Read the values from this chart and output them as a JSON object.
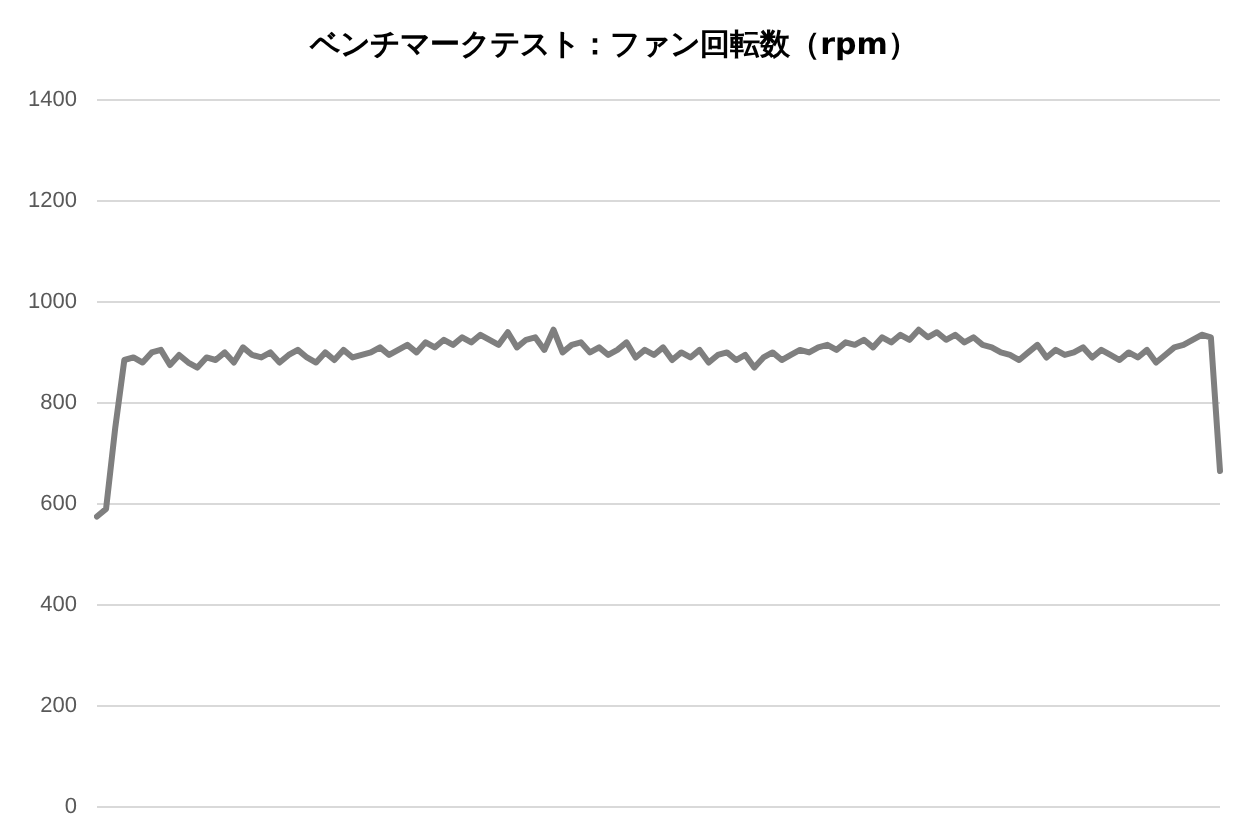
{
  "chart_data": {
    "type": "line",
    "title": "ベンチマークテスト：ファン回転数（rpm）",
    "categories": [
      null,
      null,
      null,
      null,
      null,
      null,
      null,
      null,
      null,
      null,
      null,
      null,
      null,
      null,
      null,
      null,
      null,
      null,
      null,
      null,
      null,
      null,
      null,
      null,
      null,
      null,
      null,
      null,
      null,
      null,
      null,
      null,
      null,
      null,
      null,
      null,
      null,
      null,
      null,
      null,
      null,
      null,
      null,
      null,
      null,
      null,
      null,
      null,
      null,
      null,
      null,
      null,
      null,
      null,
      null,
      null,
      null,
      null,
      null,
      null,
      null,
      null,
      null,
      null,
      null,
      null,
      null,
      null,
      null,
      null,
      null,
      null,
      null,
      null,
      null,
      null,
      null,
      null,
      null,
      null,
      null,
      null,
      null,
      null,
      null,
      null,
      null,
      null,
      null,
      null,
      null,
      null,
      null,
      null,
      null,
      null,
      null,
      null,
      null,
      null,
      null,
      null,
      null,
      null,
      null,
      null,
      null,
      null,
      null,
      null,
      null,
      null,
      null,
      null,
      null,
      null,
      null,
      null,
      null,
      null,
      null,
      null,
      null,
      null
    ],
    "series": [
      {
        "color": "#7f7f7f",
        "values": [
          575,
          590,
          750,
          885,
          890,
          880,
          900,
          905,
          875,
          895,
          880,
          870,
          890,
          885,
          900,
          880,
          910,
          895,
          890,
          900,
          880,
          895,
          905,
          890,
          880,
          900,
          885,
          905,
          890,
          895,
          900,
          910,
          895,
          905,
          915,
          900,
          920,
          910,
          925,
          915,
          930,
          920,
          935,
          925,
          915,
          940,
          910,
          925,
          930,
          905,
          945,
          900,
          915,
          920,
          900,
          910,
          895,
          905,
          920,
          890,
          905,
          895,
          910,
          885,
          900,
          890,
          905,
          880,
          895,
          900,
          885,
          895,
          870,
          890,
          900,
          885,
          895,
          905,
          900,
          910,
          915,
          905,
          920,
          915,
          925,
          910,
          930,
          920,
          935,
          925,
          945,
          930,
          940,
          925,
          935,
          920,
          930,
          915,
          910,
          900,
          895,
          885,
          900,
          915,
          890,
          905,
          895,
          900,
          910,
          890,
          905,
          895,
          885,
          900,
          890,
          905,
          880,
          895,
          910,
          915,
          925,
          935,
          930,
          665
        ]
      }
    ],
    "ylim": [
      0,
      1400
    ],
    "yticks": [
      0,
      200,
      400,
      600,
      800,
      1000,
      1200,
      1400
    ],
    "grid": "y",
    "legend": false,
    "tick_labels": "y",
    "marker": "none",
    "line_style": "solid"
  }
}
